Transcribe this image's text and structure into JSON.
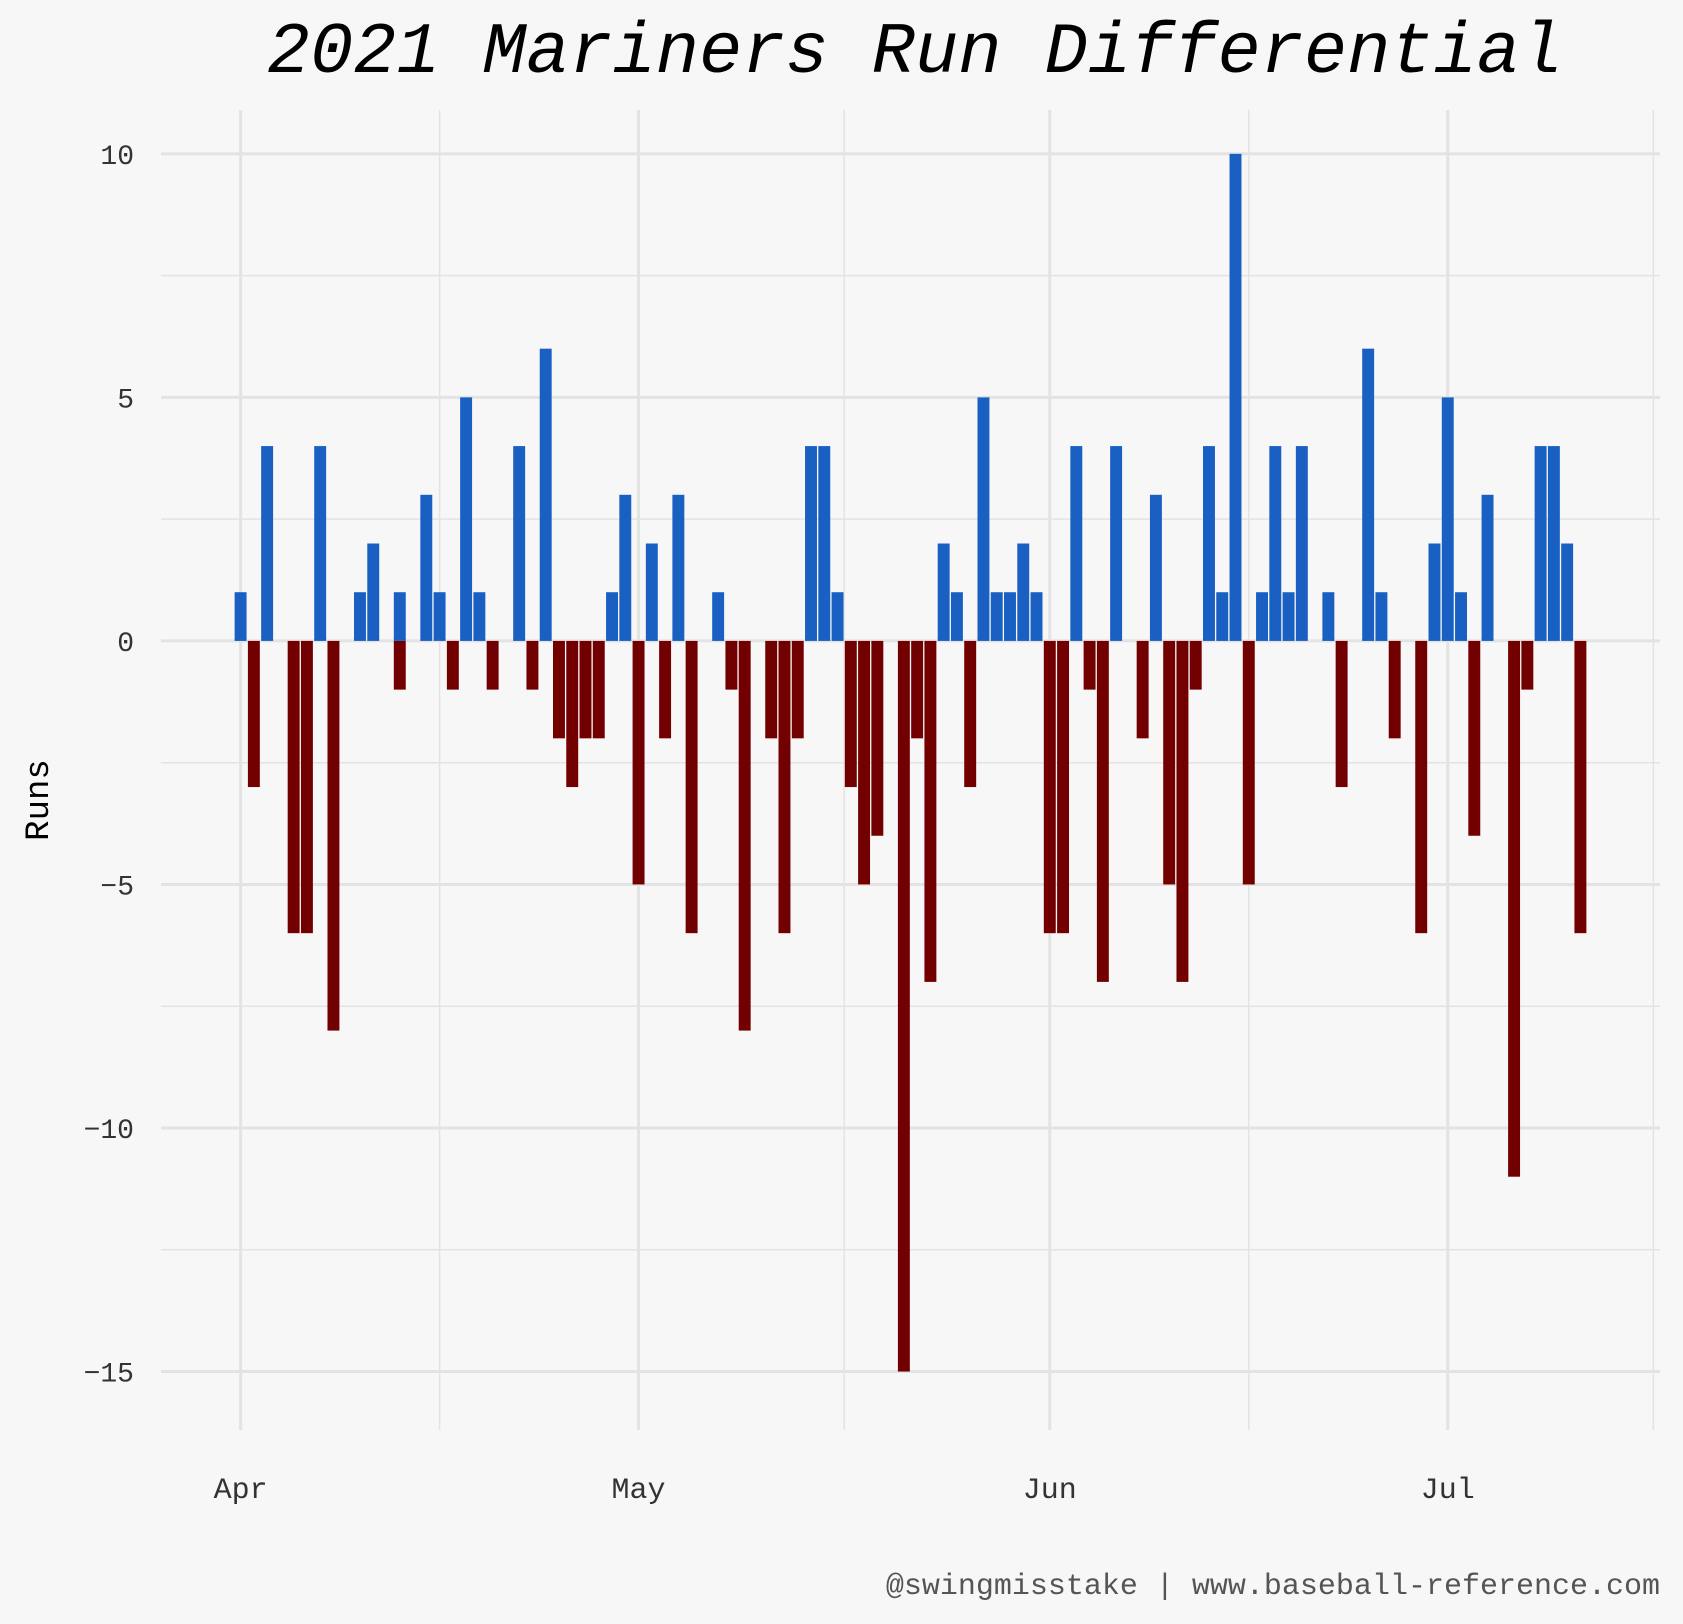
{
  "chart_data": {
    "type": "bar",
    "title": "2021 Mariners Run Differential",
    "xlabel": "",
    "ylabel": "Runs",
    "caption": "@swingmisstake | www.baseball-reference.com",
    "x_tick_labels": [
      "Apr",
      "May",
      "Jun",
      "Jul"
    ],
    "x_tick_dates": [
      "2021-04-01",
      "2021-05-01",
      "2021-06-01",
      "2021-07-01"
    ],
    "x_range": [
      "2021-03-26",
      "2021-07-17"
    ],
    "y_ticks": [
      10,
      5,
      0,
      -5,
      -10,
      -15
    ],
    "y_tick_labels": [
      "10",
      "5",
      "0",
      "−5",
      "−10",
      "−15"
    ],
    "ylim": [
      -16.2,
      10.9
    ],
    "grid": true,
    "colors": {
      "positive": "#1a5fc2",
      "negative": "#730000",
      "background": "#f7f7f7",
      "grid": "#e3e3e3"
    },
    "values": [
      {
        "x": "2021-04-01",
        "y": 1
      },
      {
        "x": "2021-04-02",
        "y": -3
      },
      {
        "x": "2021-04-03",
        "y": 4
      },
      {
        "x": "2021-04-05",
        "y": -6
      },
      {
        "x": "2021-04-06",
        "y": -6
      },
      {
        "x": "2021-04-07",
        "y": 4
      },
      {
        "x": "2021-04-08",
        "y": -8
      },
      {
        "x": "2021-04-10",
        "y": 1
      },
      {
        "x": "2021-04-11",
        "y": 2
      },
      {
        "x": "2021-04-13",
        "y": -1
      },
      {
        "x": "2021-04-13",
        "y": 1
      },
      {
        "x": "2021-04-15",
        "y": 3
      },
      {
        "x": "2021-04-16",
        "y": 1
      },
      {
        "x": "2021-04-17",
        "y": -1
      },
      {
        "x": "2021-04-18",
        "y": 5
      },
      {
        "x": "2021-04-19",
        "y": 1
      },
      {
        "x": "2021-04-20",
        "y": -1
      },
      {
        "x": "2021-04-22",
        "y": 4
      },
      {
        "x": "2021-04-23",
        "y": -1
      },
      {
        "x": "2021-04-24",
        "y": 6
      },
      {
        "x": "2021-04-25",
        "y": -2
      },
      {
        "x": "2021-04-26",
        "y": -3
      },
      {
        "x": "2021-04-27",
        "y": -2
      },
      {
        "x": "2021-04-28",
        "y": -2
      },
      {
        "x": "2021-04-29",
        "y": 1
      },
      {
        "x": "2021-04-30",
        "y": 3
      },
      {
        "x": "2021-05-01",
        "y": -5
      },
      {
        "x": "2021-05-02",
        "y": 2
      },
      {
        "x": "2021-05-03",
        "y": -2
      },
      {
        "x": "2021-05-04",
        "y": 3
      },
      {
        "x": "2021-05-05",
        "y": -6
      },
      {
        "x": "2021-05-07",
        "y": 1
      },
      {
        "x": "2021-05-08",
        "y": -1
      },
      {
        "x": "2021-05-09",
        "y": -8
      },
      {
        "x": "2021-05-11",
        "y": -2
      },
      {
        "x": "2021-05-12",
        "y": -6
      },
      {
        "x": "2021-05-13",
        "y": -2
      },
      {
        "x": "2021-05-14",
        "y": 4
      },
      {
        "x": "2021-05-15",
        "y": 4
      },
      {
        "x": "2021-05-16",
        "y": 1
      },
      {
        "x": "2021-05-17",
        "y": -3
      },
      {
        "x": "2021-05-18",
        "y": -5
      },
      {
        "x": "2021-05-19",
        "y": -4
      },
      {
        "x": "2021-05-21",
        "y": -15
      },
      {
        "x": "2021-05-22",
        "y": -2
      },
      {
        "x": "2021-05-23",
        "y": -7
      },
      {
        "x": "2021-05-24",
        "y": 2
      },
      {
        "x": "2021-05-25",
        "y": 1
      },
      {
        "x": "2021-05-26",
        "y": -3
      },
      {
        "x": "2021-05-27",
        "y": 5
      },
      {
        "x": "2021-05-28",
        "y": 1
      },
      {
        "x": "2021-05-29",
        "y": 1
      },
      {
        "x": "2021-05-30",
        "y": 2
      },
      {
        "x": "2021-05-31",
        "y": 1
      },
      {
        "x": "2021-06-01",
        "y": -6
      },
      {
        "x": "2021-06-02",
        "y": -6
      },
      {
        "x": "2021-06-03",
        "y": 4
      },
      {
        "x": "2021-06-04",
        "y": -1
      },
      {
        "x": "2021-06-05",
        "y": -7
      },
      {
        "x": "2021-06-06",
        "y": 4
      },
      {
        "x": "2021-06-08",
        "y": -2
      },
      {
        "x": "2021-06-09",
        "y": 3
      },
      {
        "x": "2021-06-10",
        "y": -5
      },
      {
        "x": "2021-06-11",
        "y": -7
      },
      {
        "x": "2021-06-12",
        "y": -1
      },
      {
        "x": "2021-06-13",
        "y": 4
      },
      {
        "x": "2021-06-14",
        "y": 1
      },
      {
        "x": "2021-06-15",
        "y": 10
      },
      {
        "x": "2021-06-16",
        "y": -5
      },
      {
        "x": "2021-06-17",
        "y": 1
      },
      {
        "x": "2021-06-18",
        "y": 4
      },
      {
        "x": "2021-06-19",
        "y": 1
      },
      {
        "x": "2021-06-20",
        "y": 4
      },
      {
        "x": "2021-06-22",
        "y": 1
      },
      {
        "x": "2021-06-23",
        "y": -3
      },
      {
        "x": "2021-06-25",
        "y": 6
      },
      {
        "x": "2021-06-26",
        "y": 1
      },
      {
        "x": "2021-06-27",
        "y": -2
      },
      {
        "x": "2021-06-29",
        "y": -6
      },
      {
        "x": "2021-06-30",
        "y": 2
      },
      {
        "x": "2021-07-01",
        "y": 5
      },
      {
        "x": "2021-07-02",
        "y": 1
      },
      {
        "x": "2021-07-03",
        "y": -4
      },
      {
        "x": "2021-07-04",
        "y": 3
      },
      {
        "x": "2021-07-06",
        "y": -11
      },
      {
        "x": "2021-07-07",
        "y": -1
      },
      {
        "x": "2021-07-08",
        "y": 4
      },
      {
        "x": "2021-07-09",
        "y": 4
      },
      {
        "x": "2021-07-10",
        "y": 2
      },
      {
        "x": "2021-07-11",
        "y": -6
      }
    ]
  }
}
